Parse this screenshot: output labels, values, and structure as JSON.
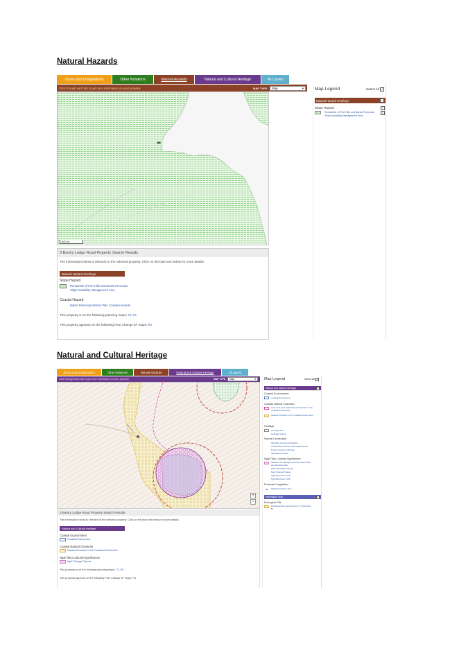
{
  "section1": {
    "heading": "Natural Hazards",
    "tabs": [
      {
        "label": "Zones and Designations",
        "color": "#f0a018"
      },
      {
        "label": "Other Notations",
        "color": "#2e7d1e"
      },
      {
        "label": "Natural Hazards",
        "color": "#8b4226"
      },
      {
        "label": "Natural and Cultural Heritage",
        "color": "#6a3a8c"
      },
      {
        "label": "All Layers",
        "color": "#5fb0cc"
      }
    ],
    "active_tab": "Natural Hazards",
    "instruction": "Click through each tab to get more information on your property",
    "map_type_label": "MAP TYPE",
    "map_type_value": "Map",
    "scale_label": "500 m",
    "zoom_in": "+",
    "zoom_out": "−",
    "results": {
      "title": "3 Bantry Lodge Road Property Search Results",
      "intro": "The information below is relevant to the selected property. Click on the blue text below for more details.",
      "overlay_header": "Natural Hazard Overlays",
      "slope_heading": "Slope Hazard",
      "slope_link_1": "Remainder of Port Hills and Banks Peninsula",
      "slope_link_2": "Slope Instability Management Area",
      "coastal_heading": "Coastal Hazard",
      "coastal_link": "Banks Peninsula District Plan Coastal Hazards",
      "planning_maps_text": "This property is on the following planning maps:",
      "planning_maps": "73, R4",
      "plan_change_text": "This property appears on the following Plan Change 5F maps:",
      "plan_change_maps": "R4"
    },
    "legend": {
      "title": "Map Legend",
      "select_all": "Select All",
      "bar": "Natural Hazard Overlays",
      "group": "Slope Hazard",
      "item": "Remainder of Port Hills and Banks Peninsula Slope Instability Management Area"
    }
  },
  "section2": {
    "heading": "Natural and Cultural Heritage",
    "tabs": [
      {
        "label": "Zones and Designations",
        "color": "#f0a018"
      },
      {
        "label": "Other Notations",
        "color": "#2e7d1e"
      },
      {
        "label": "Natural Hazards",
        "color": "#8b4226"
      },
      {
        "label": "Natural and Cultural Heritage",
        "color": "#6a3a8c"
      },
      {
        "label": "All Layers",
        "color": "#5fb0cc"
      }
    ],
    "active_tab": "Natural and Cultural Heritage",
    "instruction": "Click through each tab to get more information on your property",
    "map_type_label": "MAP TYPE",
    "map_type_value": "Map",
    "zoom_in": "+",
    "zoom_out": "−",
    "results": {
      "title": "3 Bantry Lodge Road Property Search Results",
      "intro": "The information below is relevant to the selected property. Click on the blue text below for more details.",
      "overlay_header": "Natural and Cultural Heritage",
      "env_heading": "Coastal Environment",
      "env_link": "Coastal Environment",
      "char_heading": "Coastal Natural Character",
      "char_link": "Natural Character in the Coastal Environment",
      "ngai_heading": "Ngai Tahu Cultural Significance",
      "ngai_link": "Ngā Tūranga Tūpuna",
      "planning_maps_text": "This property is on the following planning maps:",
      "planning_maps": "73, R4",
      "plan_change_text": "This property appears on the following Plan Change 5F maps:",
      "plan_change_maps": "R4"
    },
    "legend": {
      "title": "Map Legend",
      "select_all": "Select All",
      "bar": "Natural and Cultural Heritage",
      "groups": [
        {
          "heading": "Coastal Environment",
          "items": [
            "Coastal Environment"
          ]
        },
        {
          "heading": "Coastal Natural Character",
          "items": [
            "Area of at least High Natural Character in the Coastal Environment",
            "Natural Character in the Coastal Environment"
          ]
        },
        {
          "heading": "Heritage",
          "items": [
            "Heritage Item",
            "Heritage Setting"
          ]
        },
        {
          "heading": "Natural Landscape",
          "items": [
            "Identified Important Ridgeline",
            "Outstanding Natural Landscape/Feature",
            "Rural Amenity Landscape",
            "Significant Feature"
          ]
        },
        {
          "heading": "Ngai Tahu Cultural Significance",
          "items": [
            "Wahianu Iwi Management Plan Silent Files and Sensitive Site",
            "Wahi Tapu/Wahi Taonga",
            "Ngā Tūranga Tūpuna",
            "Ngā Wai Ciaen St Mi",
            "Ngā Wai Ciaen St Mi"
          ]
        },
        {
          "heading": "Protected Vegetation",
          "items": [
            "Significant Street Tree"
          ]
        }
      ],
      "bar2": "Information Only",
      "group2": "Ecological Site",
      "item2": "Ecological Site (Appendix 9.1.6.1 Schedule B)"
    }
  }
}
